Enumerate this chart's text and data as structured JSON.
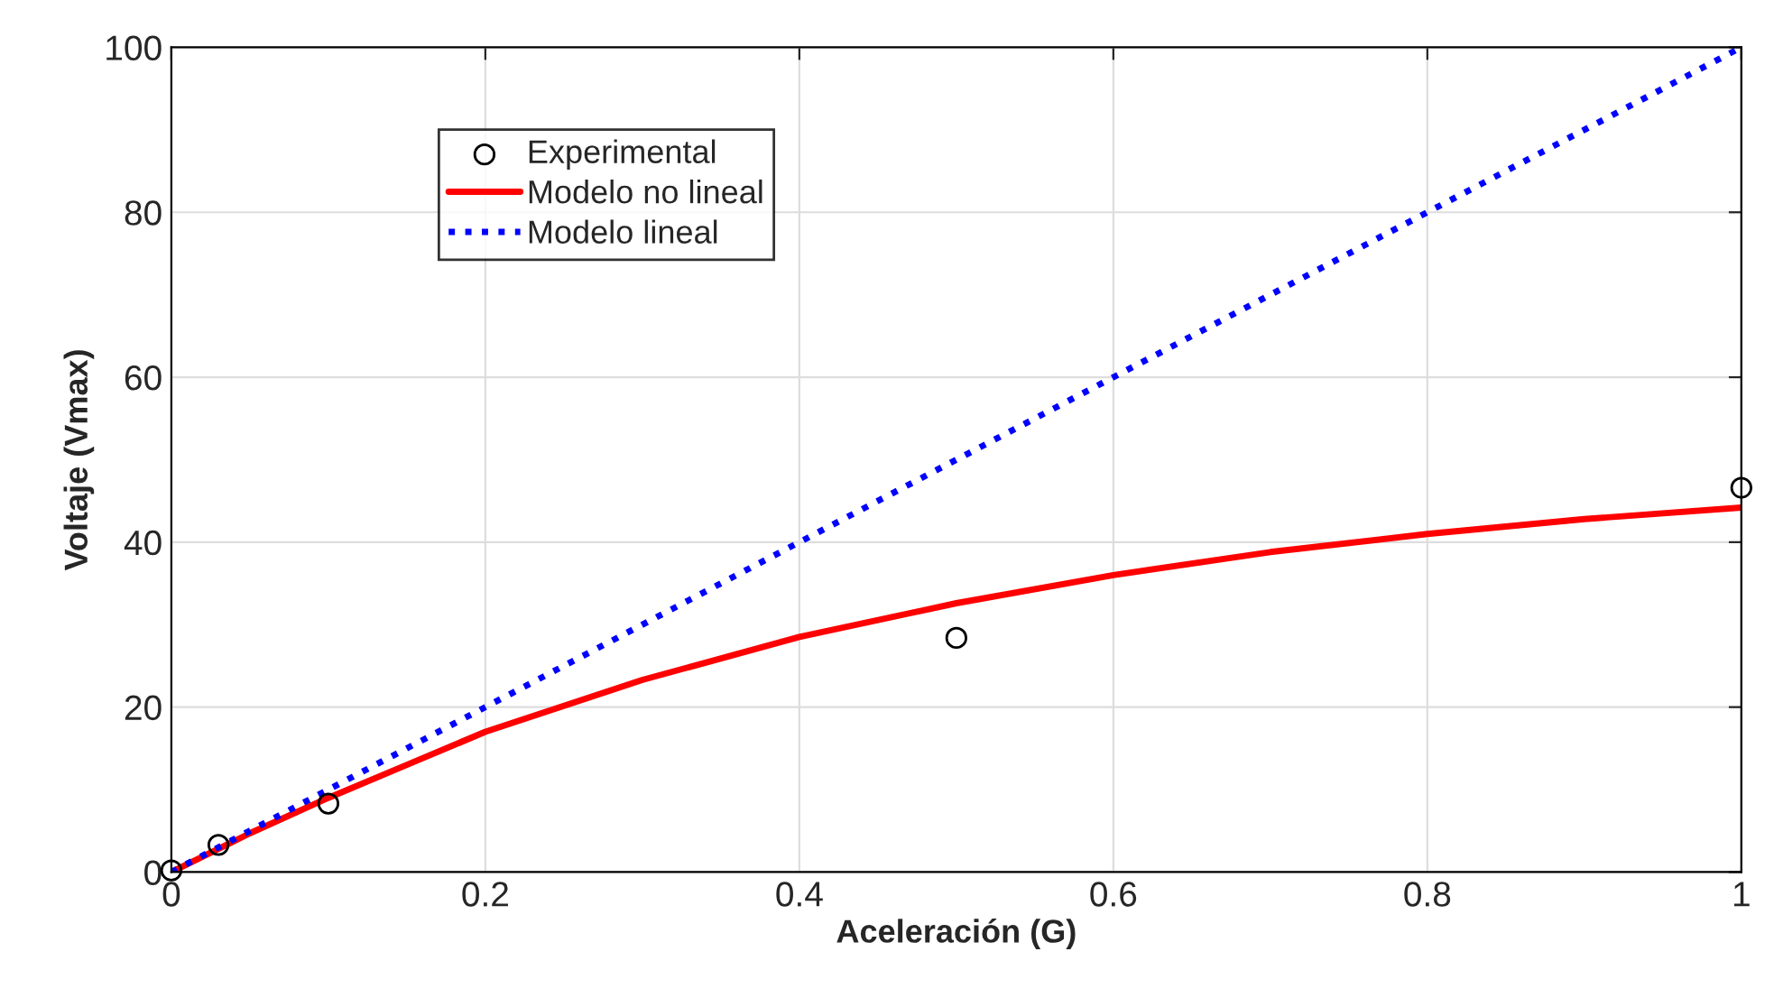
{
  "chart_data": {
    "type": "line",
    "xlabel": "Aceleración (G)",
    "ylabel": "Voltaje (Vmax)",
    "xlim": [
      0,
      1
    ],
    "ylim": [
      0,
      100
    ],
    "xticks": [
      0,
      0.2,
      0.4,
      0.6,
      0.8,
      1
    ],
    "yticks": [
      0,
      20,
      40,
      60,
      80,
      100
    ],
    "grid": true,
    "legend": "top left",
    "series": [
      {
        "name": "Experimental",
        "type": "scatter",
        "color": "#000000",
        "marker": "circle",
        "x": [
          0,
          0.03,
          0.1,
          0.5,
          1
        ],
        "values": [
          0.2,
          3.3,
          8.3,
          28.4,
          46.6
        ]
      },
      {
        "name": "Modelo no lineal",
        "color": "#ff0000",
        "line_style": "solid",
        "x": [
          0,
          0.05,
          0.1,
          0.15,
          0.2,
          0.3,
          0.4,
          0.5,
          0.6,
          0.7,
          0.8,
          0.9,
          1
        ],
        "values": [
          0,
          4.7,
          9,
          13,
          17,
          23.3,
          28.5,
          32.6,
          36,
          38.8,
          41,
          42.8,
          44.2
        ]
      },
      {
        "name": "Modelo lineal",
        "color": "#0000ff",
        "line_style": "dotted",
        "x": [
          0,
          1
        ],
        "values": [
          0,
          100
        ]
      }
    ]
  }
}
